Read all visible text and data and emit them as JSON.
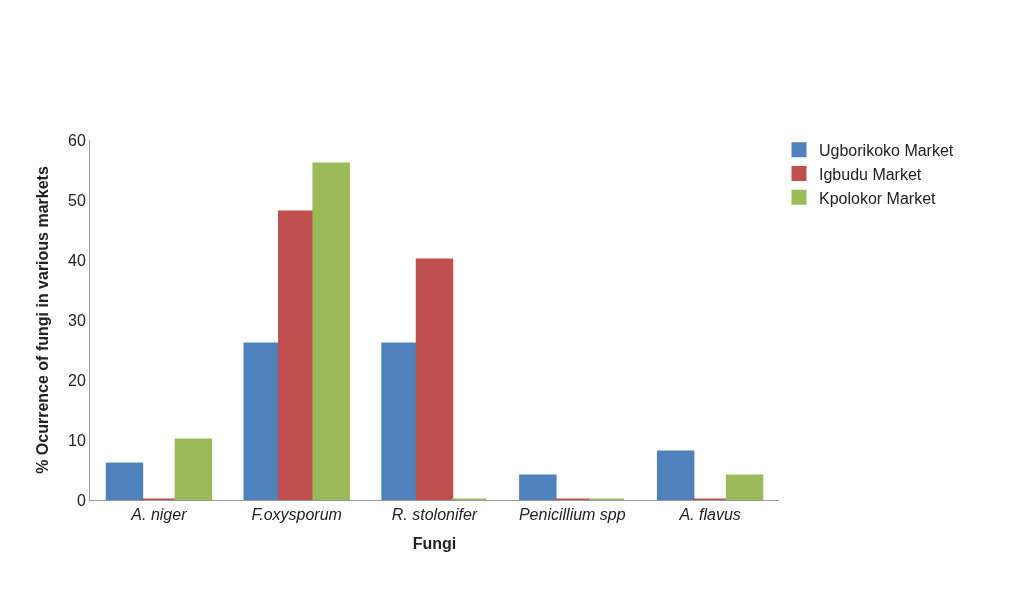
{
  "chart_data": {
    "type": "bar",
    "xlabel": "Fungi",
    "ylabel": "% Ocurrence of fungi in various markets",
    "categories": [
      "A. niger",
      "F.oxysporum",
      "R. stolonifer",
      "Penicillium spp",
      "A. flavus"
    ],
    "series": [
      {
        "name": "Ugborikoko Market",
        "color": "#4f81bd",
        "values": [
          6,
          26,
          26,
          4,
          8
        ]
      },
      {
        "name": "Igbudu Market",
        "color": "#c0504d",
        "values": [
          0,
          48,
          40,
          0,
          0
        ]
      },
      {
        "name": "Kpolokor Market",
        "color": "#9bbb59",
        "values": [
          10,
          56,
          0,
          0,
          4
        ]
      }
    ],
    "ylim": [
      0,
      60
    ],
    "yticks": [
      0,
      10,
      20,
      30,
      40,
      50,
      60
    ],
    "legend": "top right"
  }
}
